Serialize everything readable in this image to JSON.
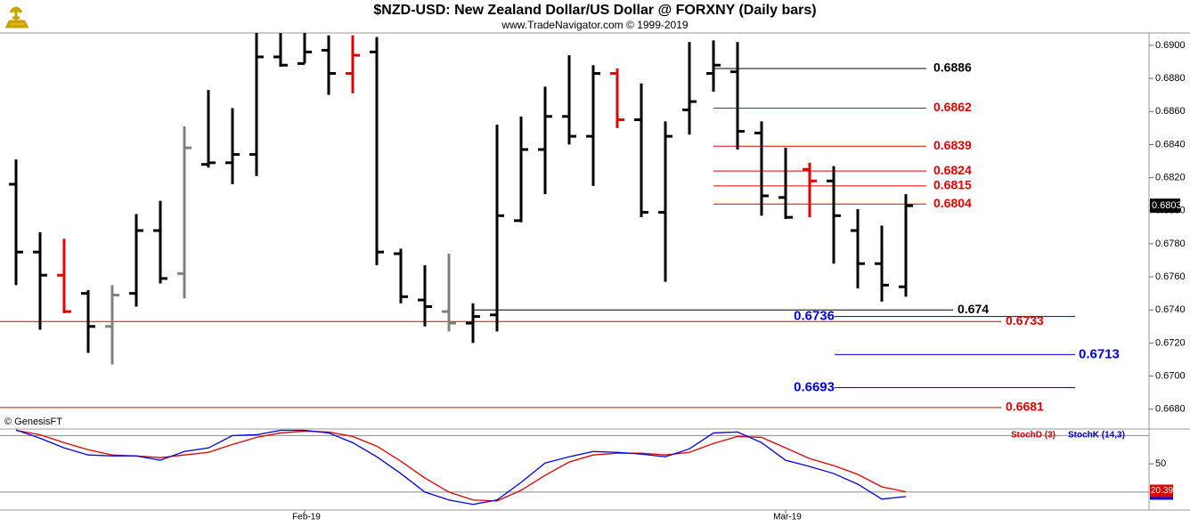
{
  "chart_data": [
    {
      "type": "ohlc",
      "title": "$NZD-USD:  New Zealand Dollar/US Dollar @ FORXNY  (Daily bars)",
      "subtitle": "www.TradeNavigator.com © 1999-2019",
      "annotation": "© GenesisFT",
      "categories": [
        null,
        null,
        null,
        null,
        null,
        null,
        null,
        null,
        null,
        null,
        null,
        null,
        "Feb-19",
        null,
        null,
        null,
        null,
        null,
        null,
        null,
        null,
        null,
        null,
        null,
        null,
        null,
        null,
        null,
        null,
        null,
        null,
        null,
        "Mar-19",
        null,
        null,
        null,
        null,
        null
      ],
      "open": [
        0.6816,
        0.6775,
        0.6761,
        0.675,
        0.673,
        0.675,
        0.6788,
        0.6762,
        0.6828,
        0.6829,
        0.6834,
        0.6893,
        0.6889,
        0.6897,
        0.6883,
        0.6896,
        0.6774,
        0.6746,
        0.6739,
        0.6732,
        0.6737,
        0.6794,
        0.6837,
        0.6857,
        0.6845,
        0.6883,
        0.6855,
        0.6799,
        0.6861,
        0.6883,
        0.6884,
        0.6847,
        0.6808,
        0.6825,
        0.6818,
        0.6788,
        0.6768,
        0.6754
      ],
      "high": [
        0.6831,
        0.6787,
        0.6783,
        0.6752,
        0.6755,
        0.6798,
        0.6806,
        0.6851,
        0.6873,
        0.6862,
        0.691,
        0.6912,
        0.691,
        0.6906,
        0.6906,
        0.6905,
        0.6777,
        0.6767,
        0.6774,
        0.6744,
        0.6852,
        0.6857,
        0.6875,
        0.6894,
        0.6888,
        0.6886,
        0.6877,
        0.6854,
        0.6902,
        0.6903,
        0.6902,
        0.6854,
        0.6838,
        0.6829,
        0.6827,
        0.6801,
        0.6791,
        0.681
      ],
      "low": [
        0.6755,
        0.6728,
        0.6738,
        0.6714,
        0.6707,
        0.6742,
        0.6756,
        0.6747,
        0.6826,
        0.6816,
        0.6821,
        0.6887,
        0.6889,
        0.687,
        0.6871,
        0.6767,
        0.6744,
        0.673,
        0.6727,
        0.672,
        0.6727,
        0.6793,
        0.681,
        0.684,
        0.6815,
        0.685,
        0.6796,
        0.6757,
        0.6846,
        0.6872,
        0.6837,
        0.6797,
        0.6795,
        0.6796,
        0.6768,
        0.6753,
        0.6745,
        0.6748
      ],
      "close": [
        0.6775,
        0.6761,
        0.6739,
        0.673,
        0.6749,
        0.6788,
        0.6759,
        0.6838,
        0.6829,
        0.6834,
        0.6893,
        0.6888,
        0.6896,
        0.6883,
        0.6894,
        0.6775,
        0.6748,
        0.6742,
        0.6732,
        0.6736,
        0.6797,
        0.6837,
        0.6857,
        0.6845,
        0.6883,
        0.6855,
        0.6799,
        0.6845,
        0.6866,
        0.6888,
        0.6848,
        0.6809,
        0.6796,
        0.6818,
        0.6797,
        0.6768,
        0.6755,
        0.6803
      ],
      "colors": [
        "#000000",
        "#000000",
        "#e00000",
        "#000000",
        "#808080",
        "#000000",
        "#000000",
        "#808080",
        "#000000",
        "#000000",
        "#000000",
        "#000000",
        "#000000",
        "#000000",
        "#e00000",
        "#000000",
        "#000000",
        "#000000",
        "#808080",
        "#000000",
        "#000000",
        "#000000",
        "#000000",
        "#000000",
        "#000000",
        "#e00000",
        "#000000",
        "#000000",
        "#000000",
        "#000000",
        "#000000",
        "#000000",
        "#000000",
        "#e00000",
        "#000000",
        "#000000",
        "#000000",
        "#000000"
      ],
      "price_tag": "0.6803",
      "levels": [
        {
          "value": 0.6886,
          "color": "#000000"
        },
        {
          "value": 0.6862,
          "color": "#e00000"
        },
        {
          "value": 0.6839,
          "color": "#e00000"
        },
        {
          "value": 0.6824,
          "color": "#e00000"
        },
        {
          "value": 0.6815,
          "color": "#e00000"
        },
        {
          "value": 0.6804,
          "color": "#e00000"
        },
        {
          "value": 0.674,
          "color": "#000000"
        },
        {
          "value": 0.6736,
          "color": "#0000dd"
        },
        {
          "value": 0.6733,
          "color": "#e00000"
        },
        {
          "value": 0.6713,
          "color": "#0000dd"
        },
        {
          "value": 0.6693,
          "color": "#0000dd"
        },
        {
          "value": 0.6681,
          "color": "#e00000"
        }
      ],
      "ylim": [
        0.6668,
        0.69075
      ],
      "yticks": [
        {
          "value": 0.668,
          "label": "0.6680"
        },
        {
          "value": 0.67,
          "label": "0.6700"
        },
        {
          "value": 0.672,
          "label": "0.6720"
        },
        {
          "value": 0.674,
          "label": "0.6740"
        },
        {
          "value": 0.676,
          "label": "0.6760"
        },
        {
          "value": 0.678,
          "label": "0.6780"
        },
        {
          "value": 0.68,
          "label": "0.6800"
        },
        {
          "value": 0.682,
          "label": "0.6820"
        },
        {
          "value": 0.684,
          "label": "0.6840"
        },
        {
          "value": 0.686,
          "label": "0.6860"
        },
        {
          "value": 0.688,
          "label": "0.6880"
        },
        {
          "value": 0.69,
          "label": "0.6900"
        }
      ]
    },
    {
      "type": "line",
      "series": [
        {
          "name": "StochD (3)",
          "color": "#e00000",
          "values": [
            85.6,
            80.9,
            72.5,
            65,
            59.4,
            58.4,
            56.6,
            59.4,
            62.2,
            70.6,
            78.1,
            82.8,
            84.7,
            83.8,
            79.1,
            68.8,
            52.8,
            35,
            20,
            11.6,
            10.6,
            21.9,
            37.8,
            51.9,
            59.4,
            61.3,
            61.3,
            59.4,
            62.2,
            71.6,
            79.1,
            78.1,
            66.9,
            55.6,
            48.1,
            38.8,
            25.6,
            20.39
          ]
        },
        {
          "name": "StochK (14,3)",
          "color": "#0000dd",
          "values": [
            86,
            77.2,
            66.9,
            59.4,
            58.4,
            58.4,
            53.8,
            63.1,
            66.9,
            80,
            80.9,
            85.6,
            85.6,
            82.8,
            72.5,
            57.5,
            39.7,
            20,
            11.6,
            6.9,
            11.6,
            30.3,
            50.9,
            57.5,
            63.1,
            62.2,
            60.3,
            57.5,
            65.9,
            82.8,
            83.8,
            72.5,
            53.8,
            47.2,
            39.7,
            28.4,
            12.5,
            15.3
          ]
        }
      ],
      "reference_lines": [
        20,
        80
      ],
      "ylim": [
        1,
        87
      ],
      "yticks": [
        50
      ]
    }
  ]
}
